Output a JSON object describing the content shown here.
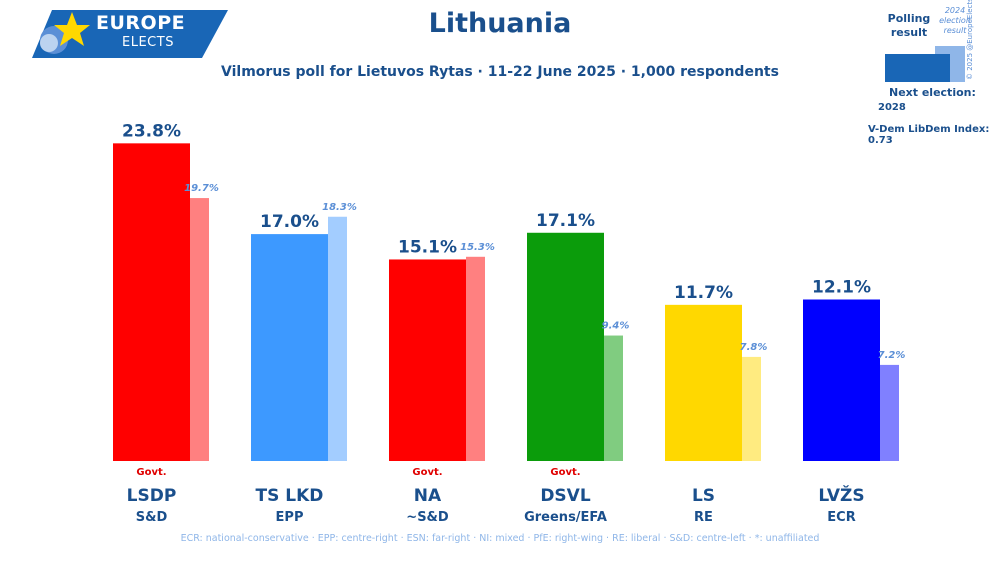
{
  "logo": {
    "line1": "EUROPE",
    "line2": "ELECTS"
  },
  "header": {
    "title": "Lithuania",
    "subtitle": "Vilmorus poll for Lietuvos Rytas · 11-22 June 2025 · 1,000 respondents"
  },
  "legend": {
    "polling_result": "Polling result",
    "previous_election": "2024 election result",
    "copyright": "© 2025 @EuropeElects",
    "next_election_label": "Next election:",
    "next_election_year": "2028",
    "vdem": "V-Dem LibDem Index: 0.73"
  },
  "footer": {
    "text": "ECR: national-conservative · EPP: centre-right · ESN: far-right · NI: mixed · PfE: right-wing · RE: liberal · S&D: centre-left · *: unaffiliated"
  },
  "chart_data": {
    "type": "bar",
    "categories": [
      "LSDP",
      "TS LKD",
      "NA",
      "DSVL",
      "LS",
      "LVŽS"
    ],
    "groups": [
      "S&D",
      "EPP",
      "~S&D",
      "Greens/EFA",
      "RE",
      "ECR"
    ],
    "series": [
      {
        "name": "Polling result",
        "values": [
          23.8,
          17.0,
          15.1,
          17.1,
          11.7,
          12.1
        ],
        "labels": [
          "23.8%",
          "17.0%",
          "15.1%",
          "17.1%",
          "11.7%",
          "12.1%"
        ]
      },
      {
        "name": "2024 election result",
        "values": [
          19.7,
          18.3,
          15.3,
          9.4,
          7.8,
          7.2
        ],
        "labels": [
          "19.7%",
          "18.3%",
          "15.3%",
          "9.4%",
          "7.8%",
          "7.2%"
        ]
      }
    ],
    "government": [
      true,
      false,
      true,
      true,
      false,
      false
    ],
    "govt_label": "Govt.",
    "colors": [
      "#ff0000",
      "#3d99ff",
      "#ff0000",
      "#0b9c0b",
      "#ffd800",
      "#0000ff"
    ],
    "prev_colors": [
      "#ff8080",
      "#a3cdff",
      "#ff8080",
      "#80cc80",
      "#ffeb80",
      "#8080ff"
    ],
    "ylim": [
      0,
      24.5
    ]
  }
}
